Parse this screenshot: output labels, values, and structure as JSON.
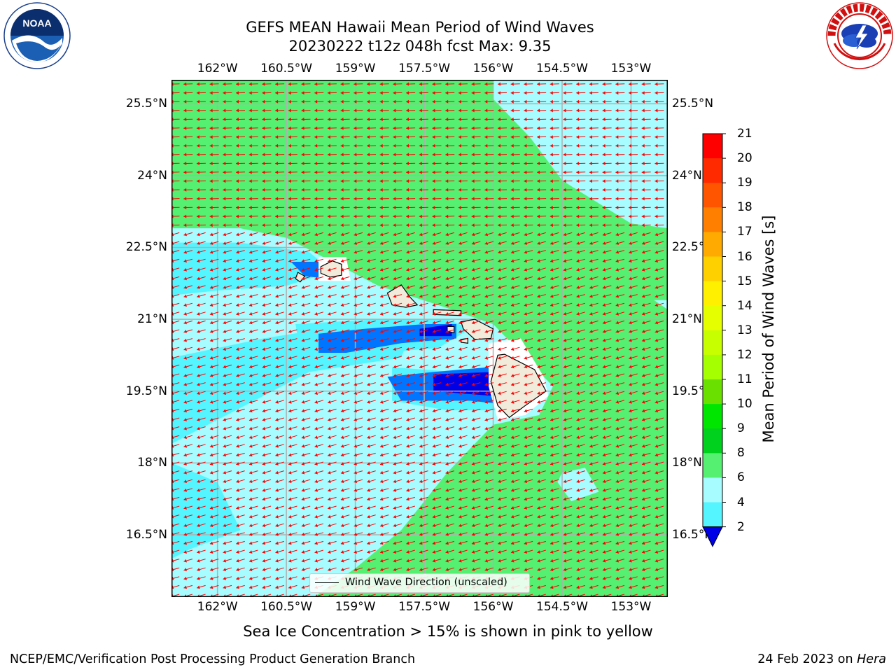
{
  "title": {
    "line1": "GEFS MEAN Hawaii Mean Period of Wind Waves",
    "line2": "20230222 t12z 048h fcst   Max: 9.35"
  },
  "map": {
    "lon_ticks": [
      "162°W",
      "160.5°W",
      "159°W",
      "157.5°W",
      "156°W",
      "154.5°W",
      "153°W"
    ],
    "lat_ticks": [
      "25.5°N",
      "24°N",
      "22.5°N",
      "21°N",
      "19.5°N",
      "18°N",
      "16.5°N"
    ],
    "lon_range": [
      -163,
      -152.2
    ],
    "lat_range": [
      15.2,
      26.0
    ],
    "background_color": "#55ef72",
    "legend_label": "Wind Wave Direction (unscaled)",
    "arrow_color": "#ff0000"
  },
  "colorbar": {
    "title": "Mean Period of Wind Waves [s]",
    "labels": [
      "21",
      "20",
      "19",
      "18",
      "17",
      "16",
      "15",
      "14",
      "13",
      "12",
      "11",
      "10",
      "9",
      "8",
      "6",
      "4",
      "2"
    ],
    "colors": [
      "#ff0000",
      "#ff2a00",
      "#ff5500",
      "#ff8000",
      "#ffaa00",
      "#ffd000",
      "#fff000",
      "#e6ff00",
      "#c8ff00",
      "#a6ff00",
      "#6ae000",
      "#00e600",
      "#00d01e",
      "#55ef72",
      "#a6fcff",
      "#55f5ff",
      "#00fcff",
      "#0075ff",
      "#0000e6"
    ]
  },
  "note": "Sea Ice Concentration > 15% is shown in pink to yellow",
  "footer": {
    "left": "NCEP/EMC/Verification Post Processing Product Generation Branch",
    "right_prefix": "24 Feb 2023 on ",
    "right_italic": "Hera"
  },
  "logos": {
    "noaa": "NOAA",
    "nws": "NATIONAL WEATHER SERVICE"
  },
  "chart_data": {
    "type": "heatmap",
    "title": "GEFS MEAN Hawaii Mean Period of Wind Waves",
    "subtitle": "20230222 t12z 048h fcst   Max: 9.35",
    "xlabel": "",
    "ylabel": "",
    "units": "s",
    "max_value": 9.35,
    "colorbar_levels": [
      2,
      4,
      6,
      8,
      9,
      10,
      11,
      12,
      13,
      14,
      15,
      16,
      17,
      18,
      19,
      20,
      21
    ],
    "grid": true,
    "legend_placement": "bottom-center"
  }
}
